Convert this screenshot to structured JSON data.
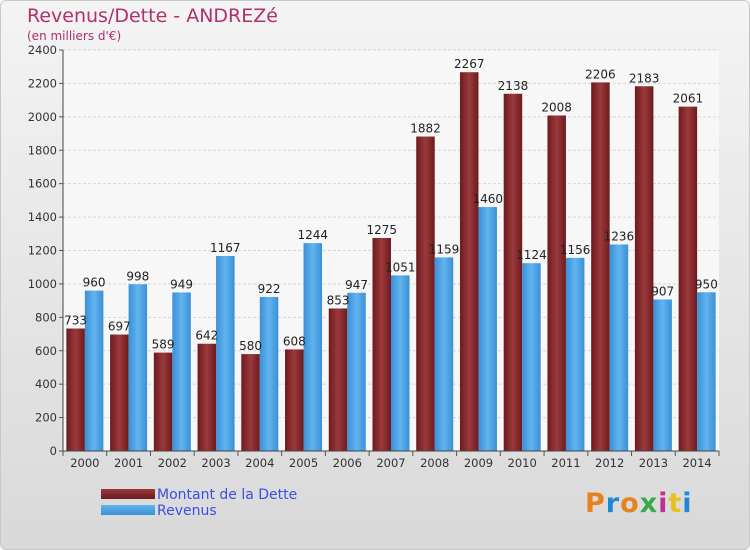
{
  "page": {
    "title": "Revenus/Dette - ANDREZé",
    "unit": "(en milliers d'€)",
    "logo_text": "Proxiti"
  },
  "colors": {
    "dette": "#6e1a1e",
    "dette_light": "#9a3a3c",
    "revenus": "#3a90d8",
    "revenus_light": "#62b4ee",
    "title": "#b0306a",
    "legend_text": "#3b4fe0",
    "logo": [
      "#e8821e",
      "#1e88d6",
      "#e8821e",
      "#3aa84a",
      "#c03090",
      "#e8c01e",
      "#1e88d6"
    ]
  },
  "chart_data": {
    "type": "bar",
    "categories": [
      "2000",
      "2001",
      "2002",
      "2003",
      "2004",
      "2005",
      "2006",
      "2007",
      "2008",
      "2009",
      "2010",
      "2011",
      "2012",
      "2013",
      "2014"
    ],
    "series": [
      {
        "name": "Montant de la Dette",
        "values": [
          733,
          697,
          589,
          642,
          580,
          608,
          853,
          1275,
          1882,
          2267,
          2138,
          2008,
          2206,
          2183,
          2061
        ]
      },
      {
        "name": "Revenus",
        "values": [
          960,
          998,
          949,
          1167,
          922,
          1244,
          947,
          1051,
          1159,
          1460,
          1124,
          1156,
          1236,
          907,
          950
        ]
      }
    ],
    "yticks": [
      "0",
      "200",
      "400",
      "600",
      "800",
      "1000",
      "1200",
      "1400",
      "1600",
      "1800",
      "2000",
      "2200",
      "2400"
    ],
    "ylim": [
      0,
      2400
    ],
    "grid": true,
    "legend_position": "bottom-left"
  }
}
